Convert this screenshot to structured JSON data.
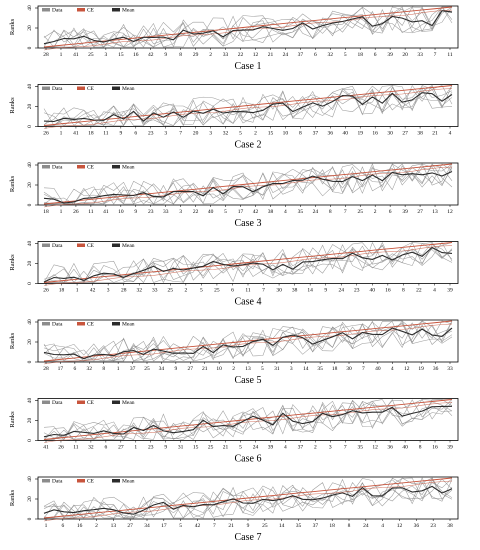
{
  "colors": {
    "data": "#8c8c8c",
    "ce": "#c8553d",
    "mean": "#2b2b2b",
    "axis": "#000000"
  },
  "chart_data": [
    {
      "type": "line",
      "title": "Case 1",
      "ylabel": "Ranks",
      "yticks": [
        0,
        20,
        40
      ],
      "ylim": [
        0,
        42
      ],
      "legend": [
        "Data",
        "CE",
        "Mean"
      ],
      "xtick_labels": [
        "28",
        "1",
        "41",
        "25",
        "3",
        "15",
        "16",
        "42",
        "9",
        "8",
        "29",
        "2",
        "33",
        "22",
        "12",
        "21",
        "24",
        "37",
        "6",
        "32",
        "5",
        "18",
        "6",
        "39",
        "20",
        "33",
        "7",
        "11"
      ],
      "n_points": 42,
      "seed": 11
    },
    {
      "type": "line",
      "title": "Case 2",
      "ylabel": "Ranks",
      "yticks": [
        0,
        20,
        40
      ],
      "ylim": [
        0,
        42
      ],
      "legend": [
        "Data",
        "CE",
        "Mean"
      ],
      "xtick_labels": [
        "26",
        "1",
        "41",
        "18",
        "11",
        "9",
        "6",
        "23",
        "3",
        "7",
        "20",
        "3",
        "32",
        "5",
        "2",
        "15",
        "10",
        "8",
        "37",
        "36",
        "40",
        "19",
        "16",
        "30",
        "27",
        "38",
        "21",
        "4"
      ],
      "n_points": 42,
      "seed": 23
    },
    {
      "type": "line",
      "title": "Case 3",
      "ylabel": "Ranks",
      "yticks": [
        0,
        20,
        40
      ],
      "ylim": [
        0,
        42
      ],
      "legend": [
        "Data",
        "CE",
        "Mean"
      ],
      "xtick_labels": [
        "18",
        "1",
        "26",
        "11",
        "41",
        "10",
        "9",
        "23",
        "33",
        "3",
        "22",
        "40",
        "5",
        "17",
        "42",
        "38",
        "4",
        "35",
        "24",
        "8",
        "7",
        "25",
        "2",
        "6",
        "39",
        "27",
        "13",
        "12"
      ],
      "n_points": 42,
      "seed": 37
    },
    {
      "type": "line",
      "title": "Case 4",
      "ylabel": "Ranks",
      "yticks": [
        0,
        20,
        40
      ],
      "ylim": [
        0,
        42
      ],
      "legend": [
        "Data",
        "CE",
        "Mean"
      ],
      "xtick_labels": [
        "26",
        "18",
        "1",
        "42",
        "3",
        "28",
        "32",
        "33",
        "25",
        "2",
        "5",
        "25",
        "6",
        "11",
        "7",
        "30",
        "38",
        "14",
        "9",
        "24",
        "23",
        "40",
        "16",
        "8",
        "22",
        "4",
        "39"
      ],
      "n_points": 42,
      "seed": 41
    },
    {
      "type": "line",
      "title": "Case 5",
      "ylabel": "Ranks",
      "yticks": [
        0,
        20,
        40
      ],
      "ylim": [
        0,
        42
      ],
      "legend": [
        "Data",
        "CE",
        "Mean"
      ],
      "xtick_labels": [
        "28",
        "17",
        "6",
        "32",
        "8",
        "1",
        "37",
        "25",
        "34",
        "9",
        "27",
        "21",
        "10",
        "2",
        "13",
        "5",
        "31",
        "3",
        "14",
        "35",
        "18",
        "30",
        "7",
        "40",
        "4",
        "12",
        "19",
        "36",
        "33"
      ],
      "n_points": 42,
      "seed": 53
    },
    {
      "type": "line",
      "title": "Case 6",
      "ylabel": "Ranks",
      "yticks": [
        0,
        20,
        40
      ],
      "ylim": [
        0,
        42
      ],
      "legend": [
        "Data",
        "CE",
        "Mean"
      ],
      "xtick_labels": [
        "41",
        "26",
        "11",
        "32",
        "6",
        "27",
        "1",
        "23",
        "9",
        "31",
        "15",
        "25",
        "21",
        "5",
        "24",
        "39",
        "4",
        "37",
        "2",
        "3",
        "7",
        "35",
        "12",
        "36",
        "40",
        "8",
        "16",
        "39"
      ],
      "n_points": 42,
      "seed": 67
    },
    {
      "type": "line",
      "title": "Case 7",
      "ylabel": "Ranks",
      "yticks": [
        0,
        20,
        40
      ],
      "ylim": [
        0,
        42
      ],
      "legend": [
        "Data",
        "CE",
        "Mean"
      ],
      "xtick_labels": [
        "1",
        "6",
        "16",
        "2",
        "13",
        "27",
        "34",
        "17",
        "5",
        "42",
        "7",
        "21",
        "9",
        "25",
        "14",
        "35",
        "37",
        "18",
        "8",
        "24",
        "4",
        "12",
        "36",
        "23",
        "38"
      ],
      "n_points": 42,
      "seed": 79
    }
  ]
}
